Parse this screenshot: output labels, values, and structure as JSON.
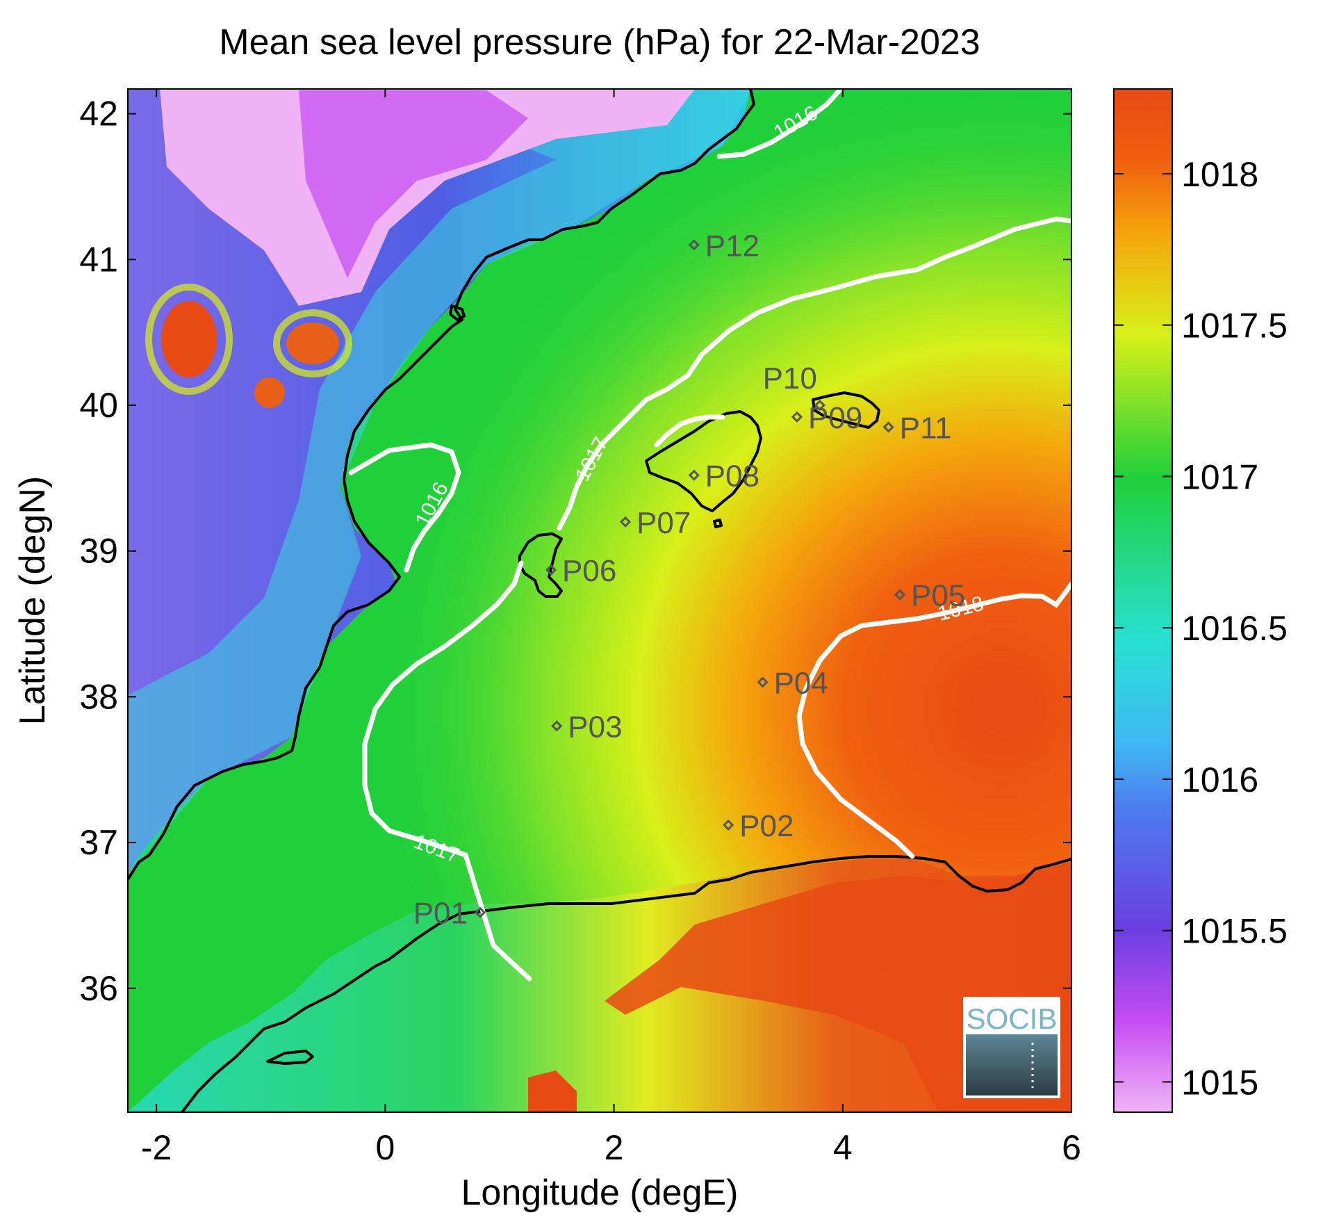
{
  "title": "Mean sea level pressure (hPa) for 22-Mar-2023",
  "map": {
    "xlabel": "Longitude (degE)",
    "ylabel": "Latitude (degN)",
    "lon_range": [
      -2.25,
      6.0
    ],
    "lat_range": [
      35.15,
      42.17
    ],
    "x_ticks": [
      "-2",
      "0",
      "2",
      "4",
      "6"
    ],
    "y_ticks": [
      "36",
      "37",
      "38",
      "39",
      "40",
      "41",
      "42"
    ],
    "x_tick_values": [
      -2,
      0,
      2,
      4,
      6
    ],
    "y_tick_values": [
      36,
      37,
      38,
      39,
      40,
      41,
      42
    ]
  },
  "colorbar": {
    "range": [
      1014.9,
      1018.28
    ],
    "tick_values": [
      1015,
      1015.5,
      1016,
      1016.5,
      1017,
      1017.5,
      1018
    ],
    "tick_labels": [
      "1015",
      "1015.5",
      "1016",
      "1016.5",
      "1017",
      "1017.5",
      "1018"
    ],
    "colormap": [
      "#f0b4f6",
      "#c44cf2",
      "#6a3fe0",
      "#3fa0f2",
      "#28e0d4",
      "#20d03a",
      "#d8f018",
      "#f5a40c",
      "#e84a14"
    ]
  },
  "contours": [
    {
      "label": "1016",
      "value": 1016
    },
    {
      "label": "1016",
      "value": 1016
    },
    {
      "label": "1017",
      "value": 1017
    },
    {
      "label": "1017",
      "value": 1017
    },
    {
      "label": "1018",
      "value": 1018
    }
  ],
  "stations": [
    {
      "id": "P01",
      "lon": 0.83,
      "lat": 36.52
    },
    {
      "id": "P02",
      "lon": 3.0,
      "lat": 37.12
    },
    {
      "id": "P03",
      "lon": 1.5,
      "lat": 37.8
    },
    {
      "id": "P04",
      "lon": 3.3,
      "lat": 38.1
    },
    {
      "id": "P05",
      "lon": 4.5,
      "lat": 38.7
    },
    {
      "id": "P06",
      "lon": 1.45,
      "lat": 38.87
    },
    {
      "id": "P07",
      "lon": 2.1,
      "lat": 39.2
    },
    {
      "id": "P08",
      "lon": 2.7,
      "lat": 39.52
    },
    {
      "id": "P09",
      "lon": 3.6,
      "lat": 39.92
    },
    {
      "id": "P10",
      "lon": 3.8,
      "lat": 40.0
    },
    {
      "id": "P11",
      "lon": 4.4,
      "lat": 39.85
    },
    {
      "id": "P12",
      "lon": 2.7,
      "lat": 41.1
    }
  ],
  "logo": {
    "text": "SOCIB"
  }
}
